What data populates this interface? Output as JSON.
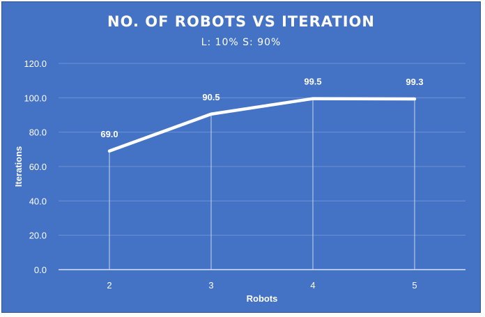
{
  "chart_data": {
    "type": "line",
    "title": "NO. OF ROBOTS VS ITERATION",
    "subtitle": "L: 10% S: 90%",
    "xlabel": "Robots",
    "ylabel": "Iterations",
    "categories": [
      "2",
      "3",
      "4",
      "5"
    ],
    "values": [
      69.0,
      90.5,
      99.5,
      99.3
    ],
    "data_labels": [
      "69.0",
      "90.5",
      "99.5",
      "99.3"
    ],
    "ylim": [
      0,
      120
    ],
    "yticks": [
      "0.0",
      "20.0",
      "40.0",
      "60.0",
      "80.0",
      "100.0",
      "120.0"
    ],
    "grid": true,
    "drop_lines": true,
    "legend": "none",
    "colors": {
      "background": "#4472C4",
      "line": "#FFFFFF",
      "text": "#FFFFFF",
      "gridline": "#6E93D6"
    }
  }
}
